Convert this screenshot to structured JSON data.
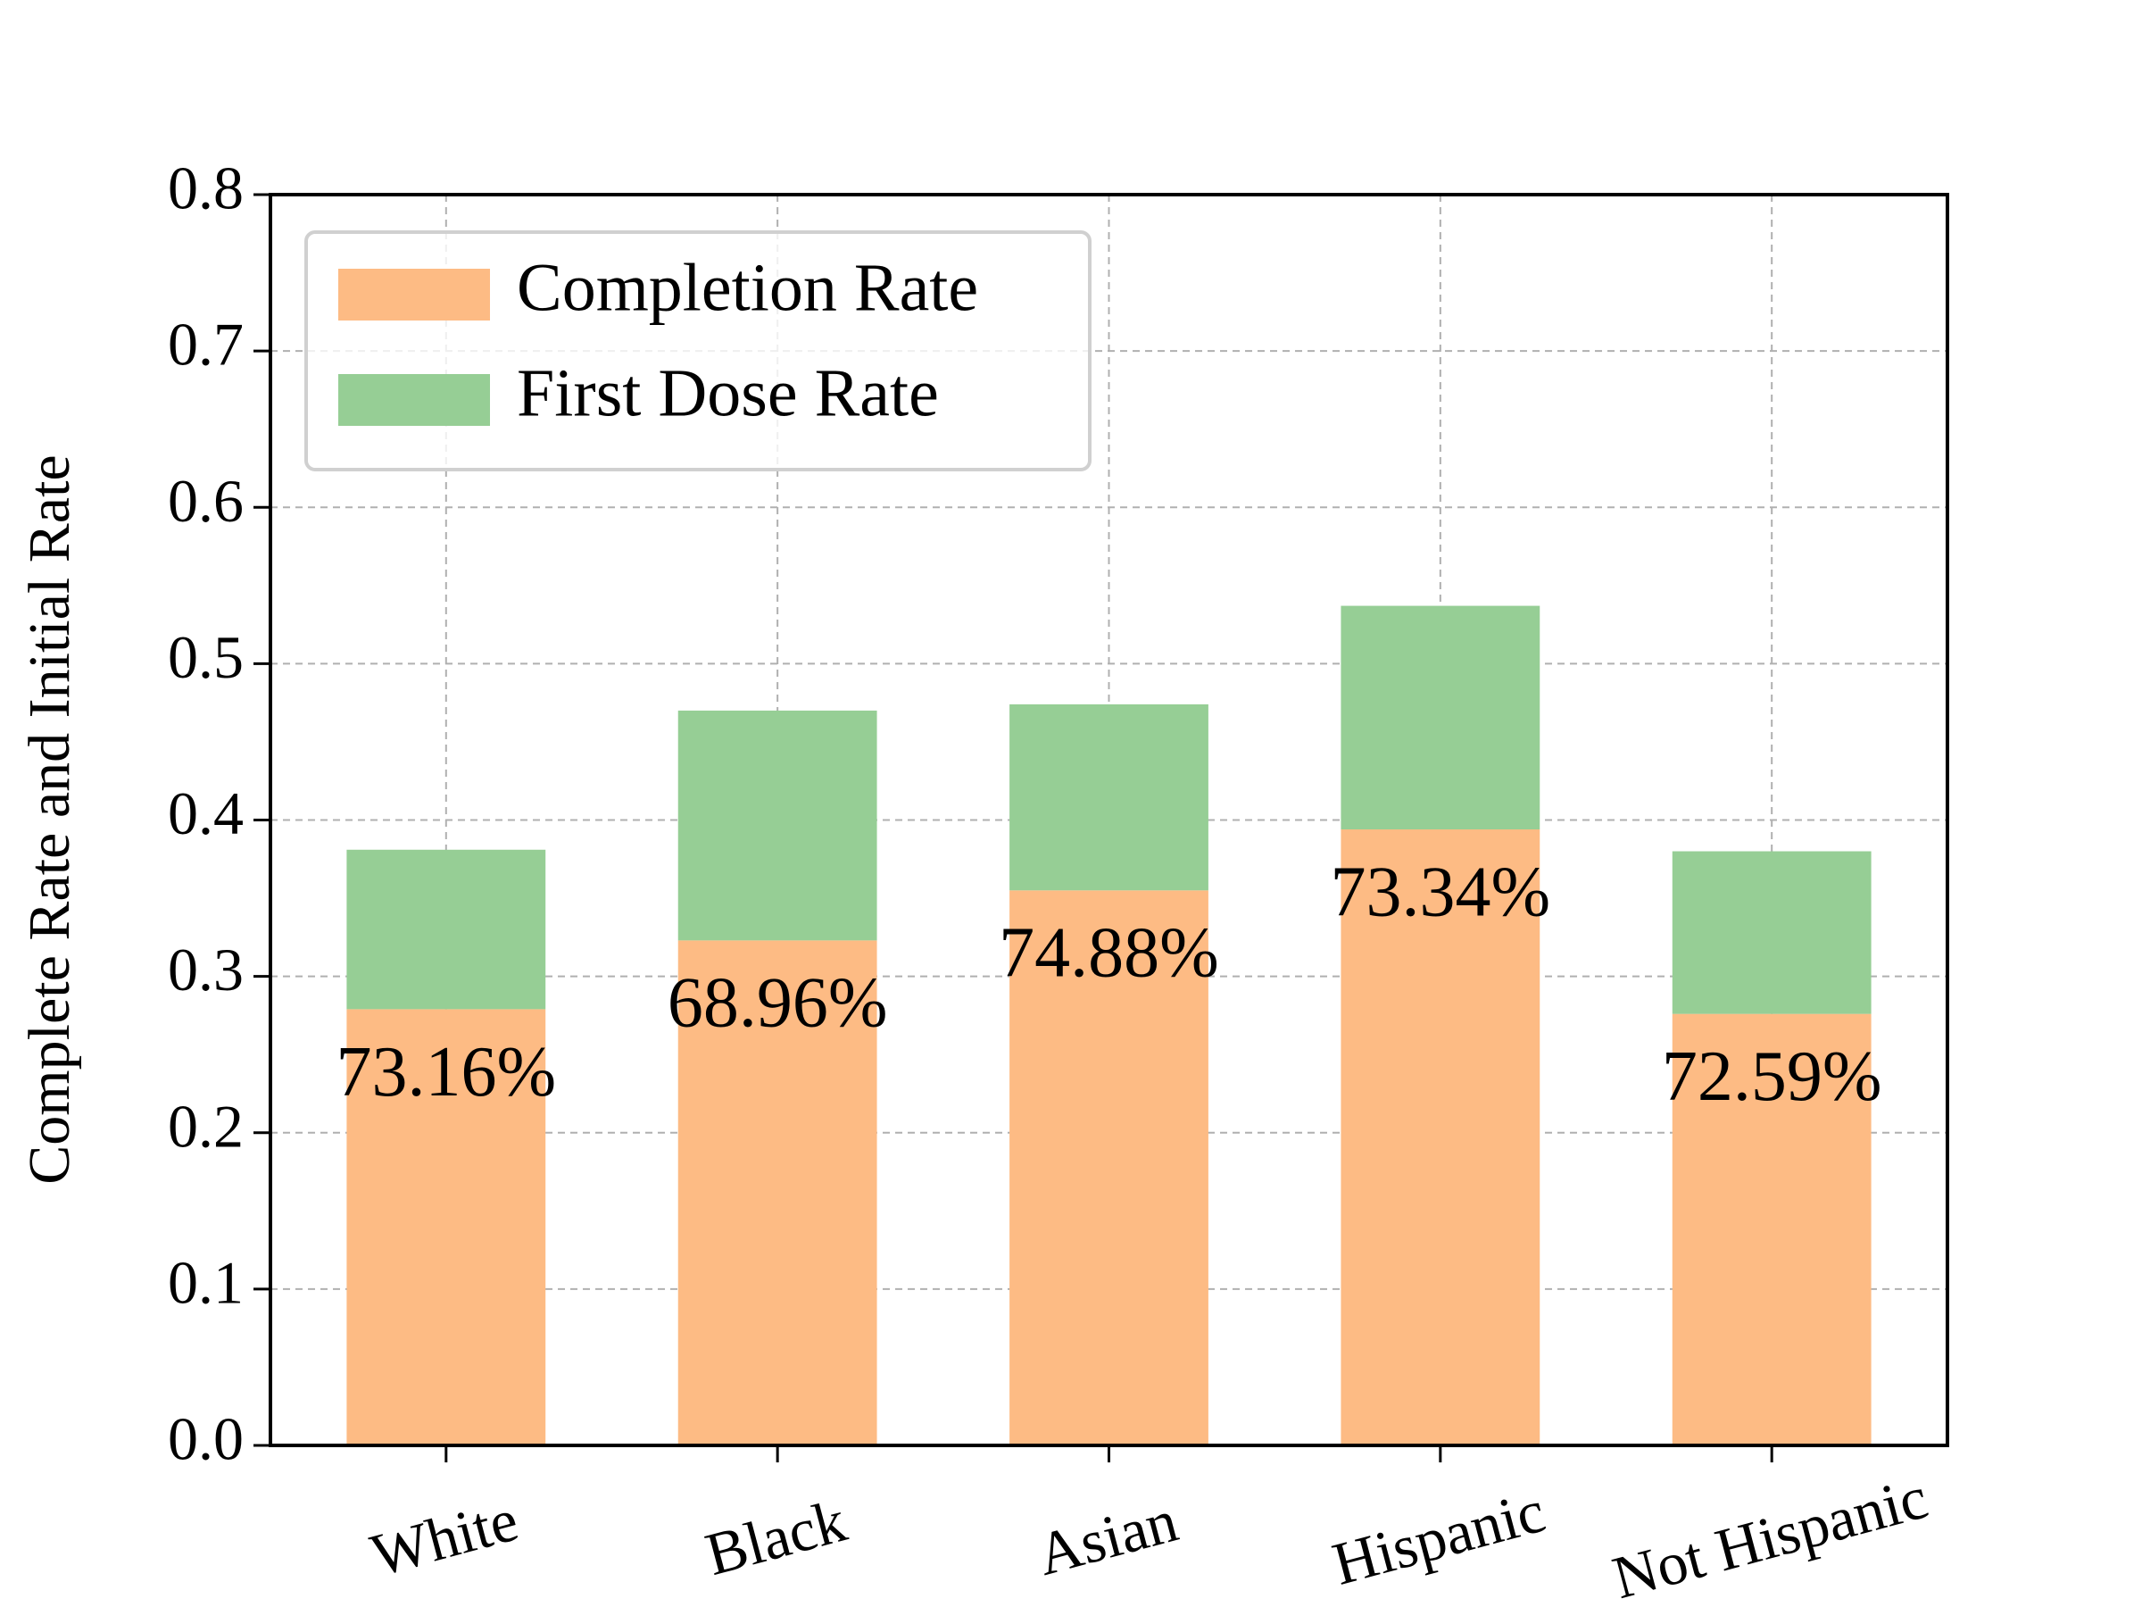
{
  "chart_data": {
    "type": "stacked_bar",
    "y_label": "Complete Rate and Initial Rate",
    "categories": [
      "White",
      "Black",
      "Asian",
      "Hispanic",
      "Not Hispanic"
    ],
    "series": [
      {
        "name": "Completion Rate",
        "color": "#fdbb84",
        "values": [
          0.279,
          0.323,
          0.355,
          0.394,
          0.276
        ]
      },
      {
        "name": "First Dose Rate",
        "color": "#96ce95",
        "values": [
          0.102,
          0.147,
          0.119,
          0.143,
          0.104
        ]
      }
    ],
    "annotations": [
      "73.16%",
      "68.96%",
      "74.88%",
      "73.34%",
      "72.59%"
    ],
    "ylim": [
      0,
      0.8
    ],
    "yticks": [
      {
        "value": 0,
        "label": "0.0"
      },
      0.1,
      0.2,
      0.3,
      0.4,
      0.5,
      0.6,
      0.7,
      0.8
    ],
    "grid": true,
    "legend": "upper left"
  }
}
